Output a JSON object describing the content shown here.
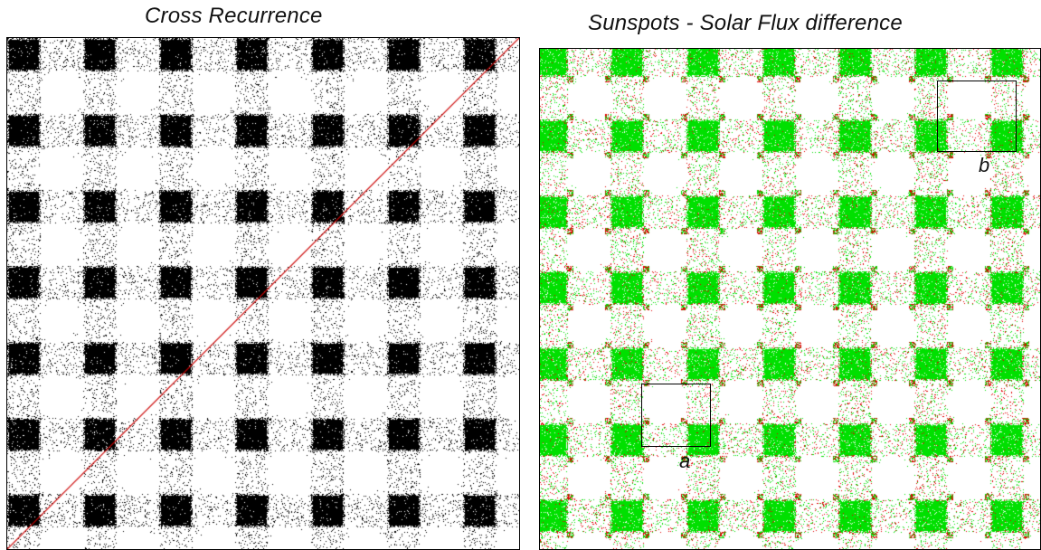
{
  "panels": {
    "left": {
      "title": "Cross Recurrence",
      "recurrence_color": "#000000",
      "diagonal_line_color": "#cc0000"
    },
    "right": {
      "title": "Sunspots - Solar Flux  difference",
      "primary_color": "#00e000",
      "secondary_color": "#e00000",
      "annotations": [
        {
          "label": "a"
        },
        {
          "label": "b"
        }
      ]
    }
  },
  "background_color": "#ffffff"
}
